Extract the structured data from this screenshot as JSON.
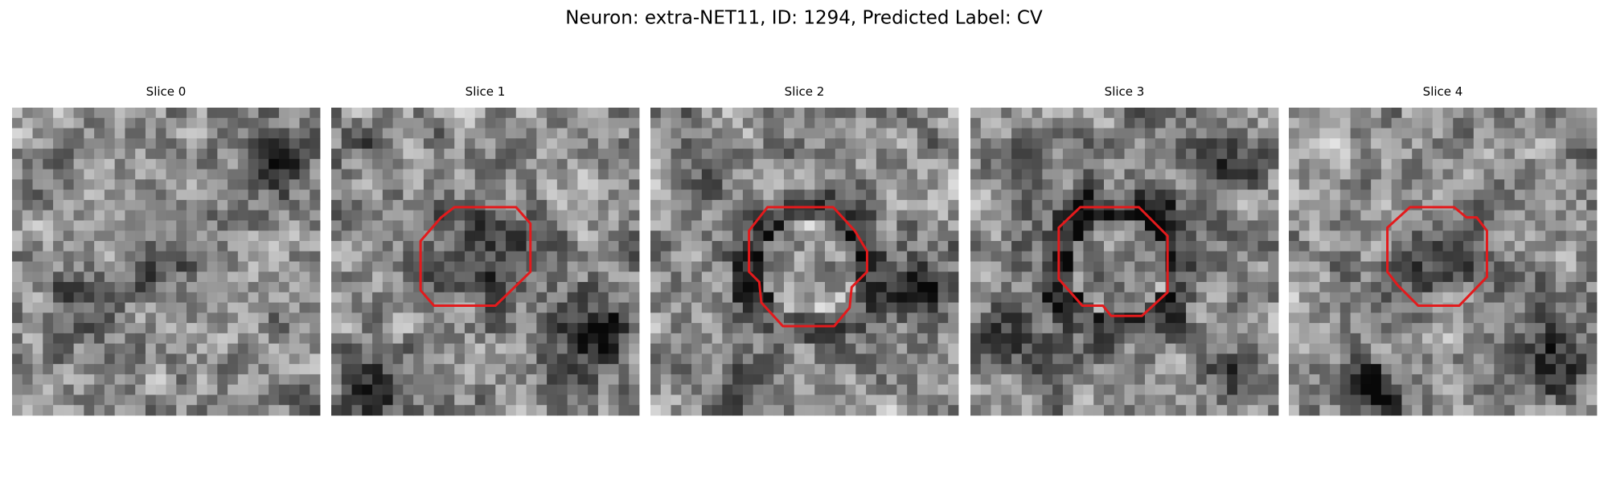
{
  "header": {
    "title": "Neuron: extra-NET11, ID: 1294, Predicted Label: CV"
  },
  "panels": [
    {
      "title": "Slice 0"
    },
    {
      "title": "Slice 1"
    },
    {
      "title": "Slice 2"
    },
    {
      "title": "Slice 3"
    },
    {
      "title": "Slice 4"
    }
  ]
}
